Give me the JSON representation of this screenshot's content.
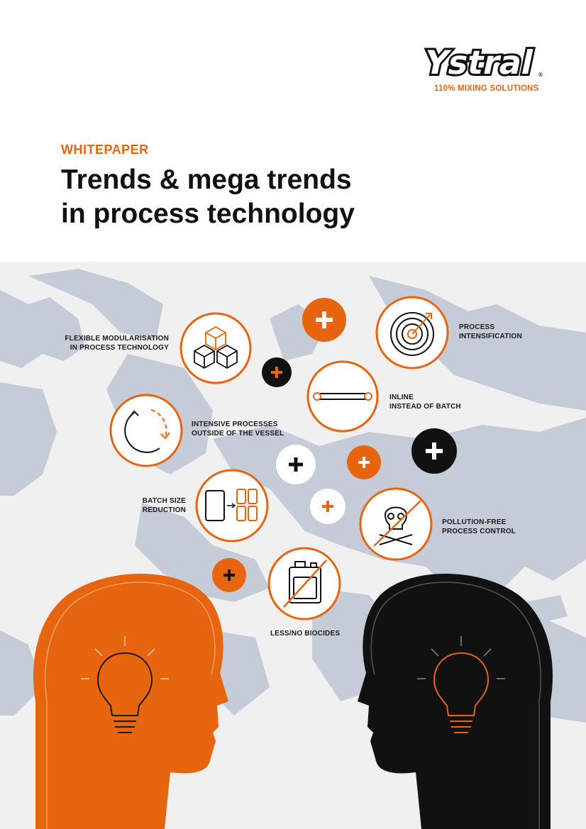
{
  "brand": {
    "logo_text": "Ystral",
    "registered_mark": "®",
    "tagline": "110% MIXING SOLUTIONS",
    "accent": "#e8650f",
    "dark": "#111111"
  },
  "header": {
    "kicker": "WHITEPAPER",
    "title_line1": "Trends & mega trends",
    "title_line2": "in process technology"
  },
  "trends": {
    "modularisation": {
      "line1": "FLEXIBLE MODULARISATION",
      "line2": "IN PROCESS TECHNOLOGY",
      "icon": "stacked-cubes-icon"
    },
    "intensification": {
      "line1": "PROCESS",
      "line2": "INTENSIFICATION",
      "icon": "target-icon"
    },
    "inline": {
      "line1": "INLINE",
      "line2": "INSTEAD OF BATCH",
      "icon": "inline-pipe-icon"
    },
    "intensive": {
      "line1": "INTENSIVE PROCESSES",
      "line2": "OUTSIDE OF THE VESSEL",
      "icon": "circular-arrow-icon"
    },
    "batch_size": {
      "line1": "BATCH SIZE",
      "line2": "REDUCTION",
      "icon": "split-batch-icon"
    },
    "pollution": {
      "line1": "POLLUTION-FREE",
      "line2": "PROCESS CONTROL",
      "icon": "crossed-skull-icon"
    },
    "biocides": {
      "line1": "LESS/NO BIOCIDES",
      "icon": "crossed-canister-icon"
    }
  },
  "plus_symbol": "+"
}
